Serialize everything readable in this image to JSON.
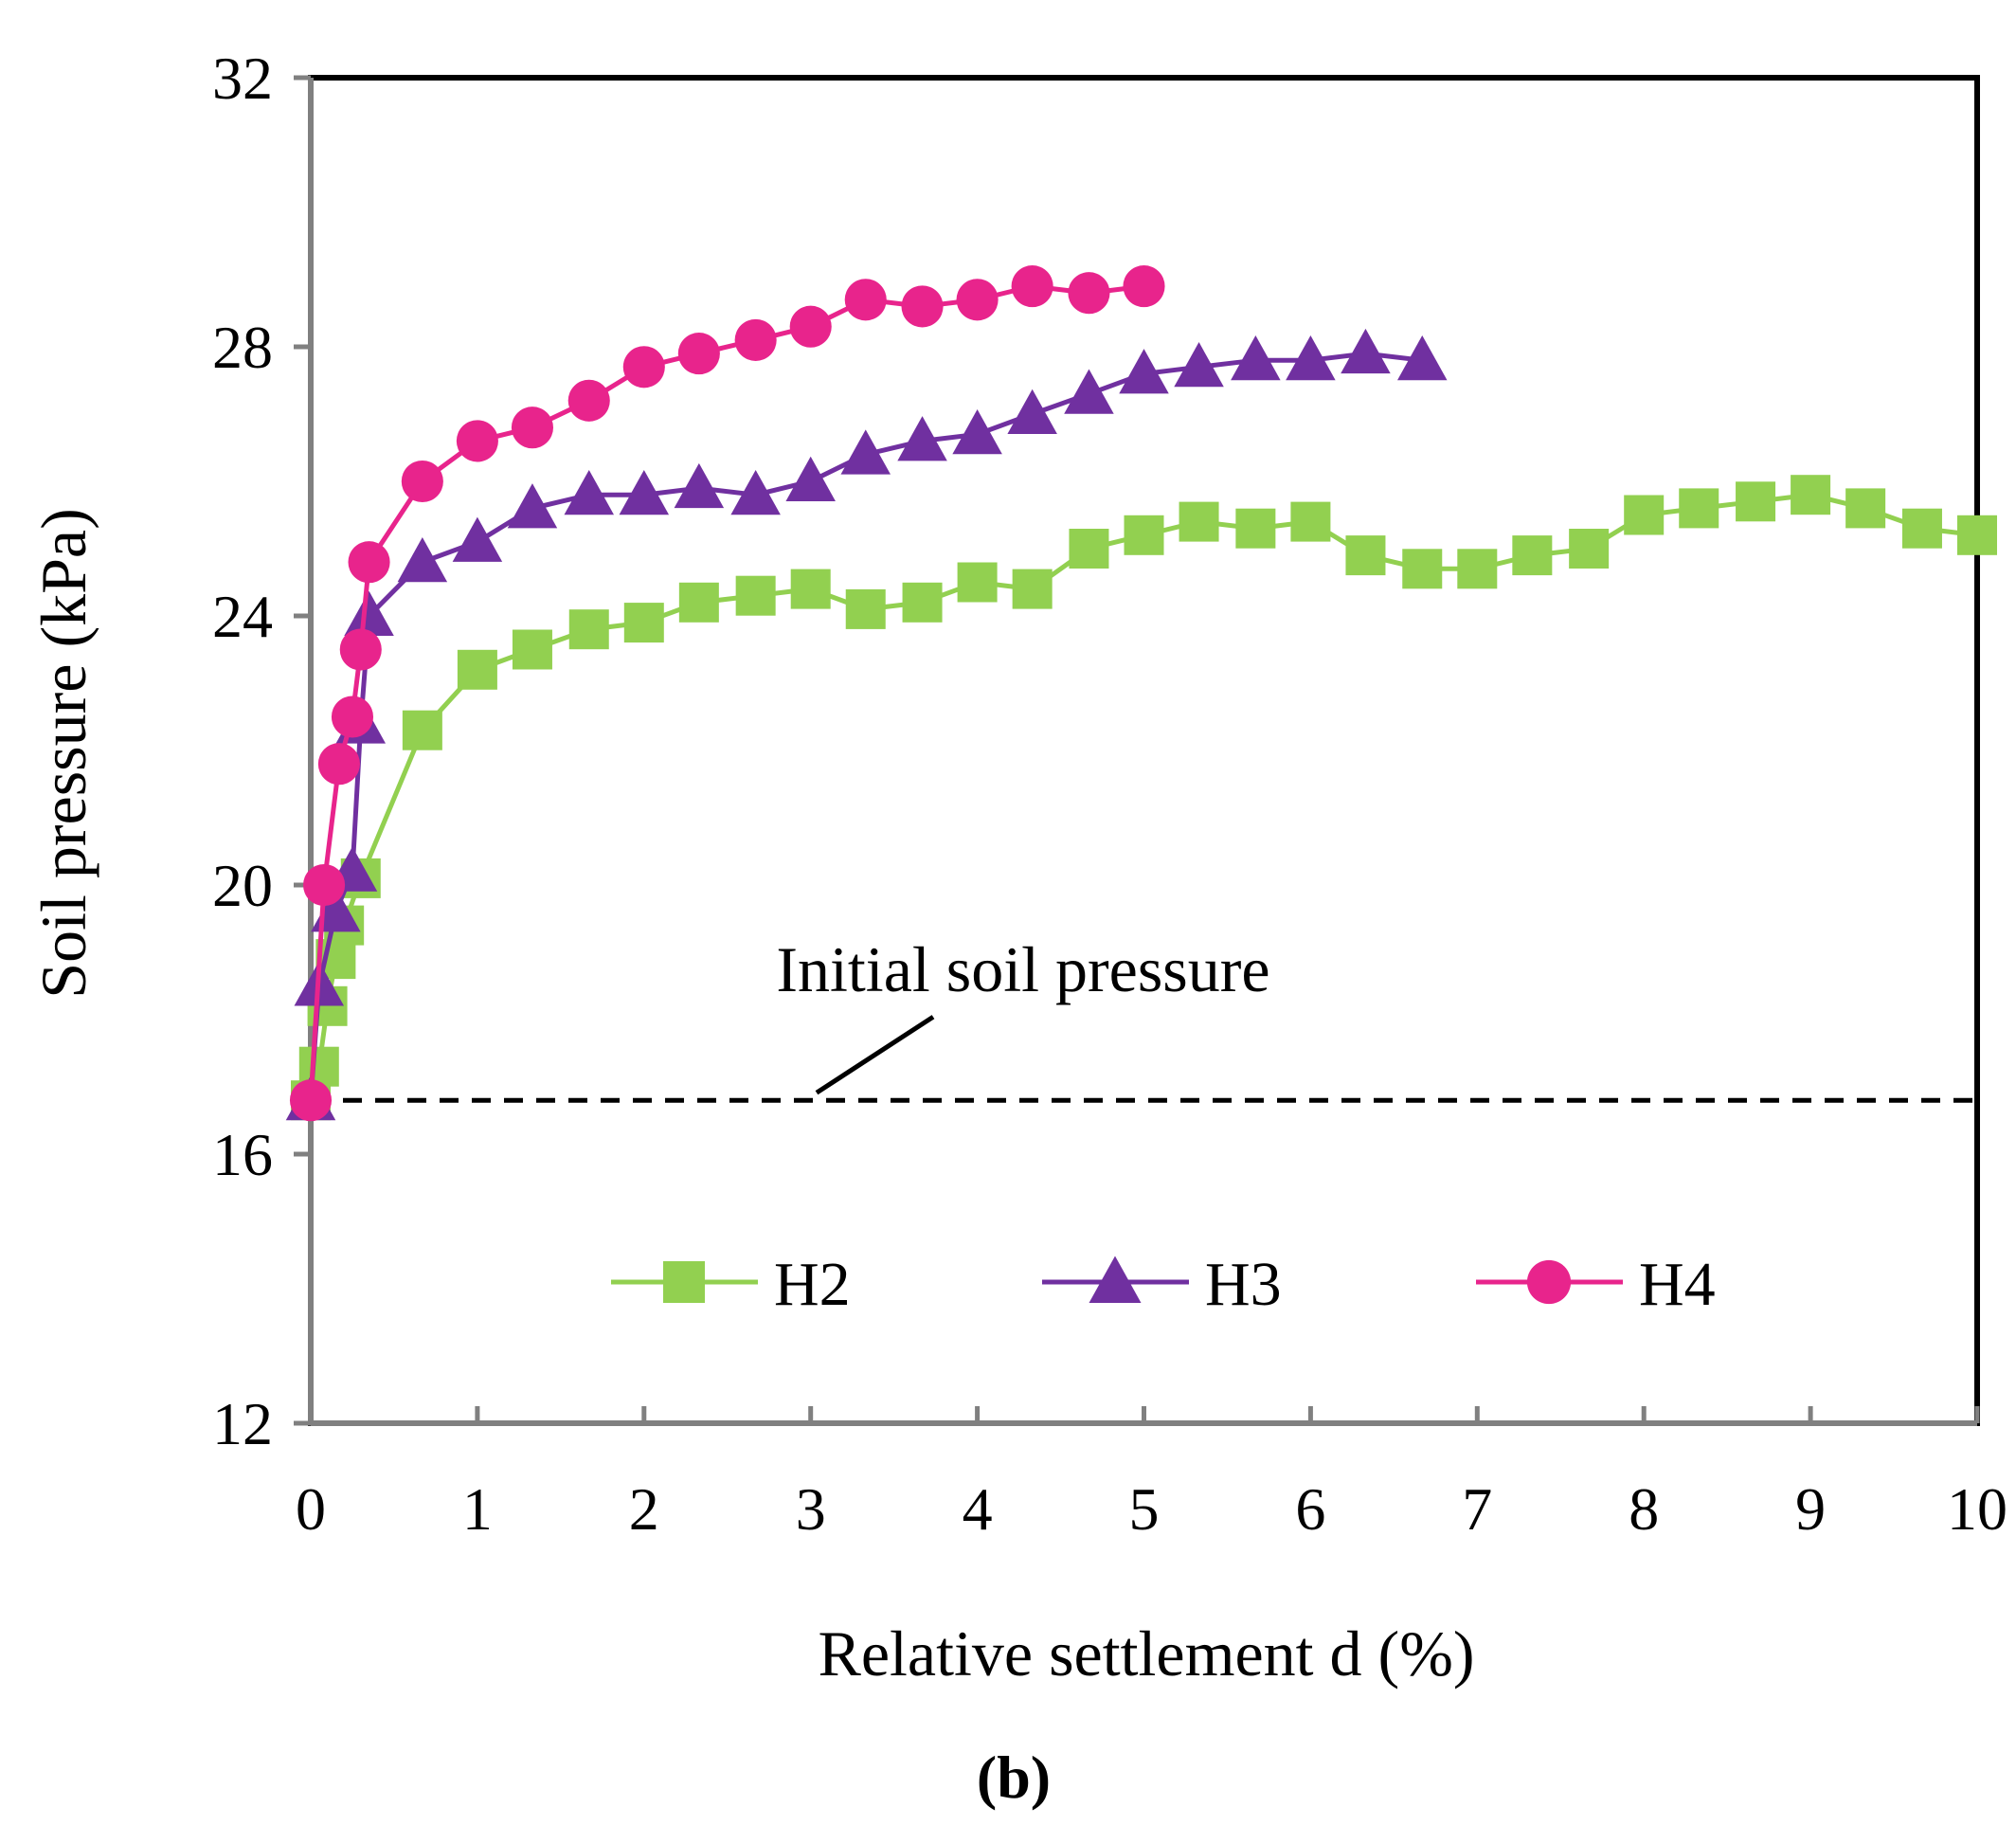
{
  "chart_data": {
    "type": "line",
    "panel_label": "b",
    "xlabel": "Relative settlement d (%)",
    "ylabel": "Soil pressure (kPa)",
    "xlim": [
      0,
      10
    ],
    "ylim": [
      12,
      32
    ],
    "xticks": [
      0,
      1,
      2,
      3,
      4,
      5,
      6,
      7,
      8,
      9,
      10
    ],
    "yticks": [
      12,
      16,
      20,
      24,
      28,
      32
    ],
    "grid": false,
    "legend_position": "bottom-center",
    "reference_line": {
      "label": "Initial soil pressure",
      "y": 16.8,
      "style": "dashed",
      "color": "#000000"
    },
    "series": [
      {
        "name": "H2",
        "marker": "square",
        "color": "#92d050",
        "x": [
          0,
          0.05,
          0.1,
          0.15,
          0.2,
          0.3,
          0.67,
          1.0,
          1.33,
          1.67,
          2.0,
          2.33,
          2.67,
          3.0,
          3.33,
          3.67,
          4.0,
          4.33,
          4.67,
          5.0,
          5.33,
          5.67,
          6.0,
          6.33,
          6.67,
          7.0,
          7.33,
          7.67,
          8.0,
          8.33,
          8.67,
          9.0,
          9.33,
          9.67,
          10.0
        ],
        "y": [
          16.8,
          17.3,
          18.2,
          18.9,
          19.4,
          20.1,
          22.3,
          23.2,
          23.5,
          23.8,
          23.9,
          24.2,
          24.3,
          24.4,
          24.1,
          24.2,
          24.5,
          24.4,
          25.0,
          25.2,
          25.4,
          25.3,
          25.4,
          24.9,
          24.7,
          24.7,
          24.9,
          25.0,
          25.5,
          25.6,
          25.7,
          25.8,
          25.6,
          25.3,
          25.2
        ]
      },
      {
        "name": "H3",
        "marker": "triangle",
        "color": "#7030a0",
        "x": [
          0,
          0.05,
          0.15,
          0.25,
          0.3,
          0.35,
          0.67,
          1.0,
          1.33,
          1.67,
          2.0,
          2.33,
          2.67,
          3.0,
          3.33,
          3.67,
          4.0,
          4.33,
          4.67,
          5.0,
          5.33,
          5.67,
          6.0,
          6.33,
          6.67
        ],
        "y": [
          16.8,
          18.5,
          19.6,
          20.2,
          22.4,
          24.0,
          24.8,
          25.1,
          25.6,
          25.8,
          25.8,
          25.9,
          25.8,
          26.0,
          26.4,
          26.6,
          26.7,
          27.0,
          27.3,
          27.6,
          27.7,
          27.8,
          27.8,
          27.9,
          27.8
        ]
      },
      {
        "name": "H4",
        "marker": "circle",
        "color": "#e8248c",
        "x": [
          0,
          0.08,
          0.17,
          0.25,
          0.3,
          0.35,
          0.67,
          1.0,
          1.33,
          1.67,
          2.0,
          2.33,
          2.67,
          3.0,
          3.33,
          3.67,
          4.0,
          4.33,
          4.67,
          5.0
        ],
        "y": [
          16.8,
          20.0,
          21.8,
          22.5,
          23.5,
          24.8,
          26.0,
          26.6,
          26.8,
          27.2,
          27.7,
          27.9,
          28.1,
          28.3,
          28.7,
          28.6,
          28.7,
          28.9,
          28.8,
          28.9
        ]
      }
    ]
  }
}
